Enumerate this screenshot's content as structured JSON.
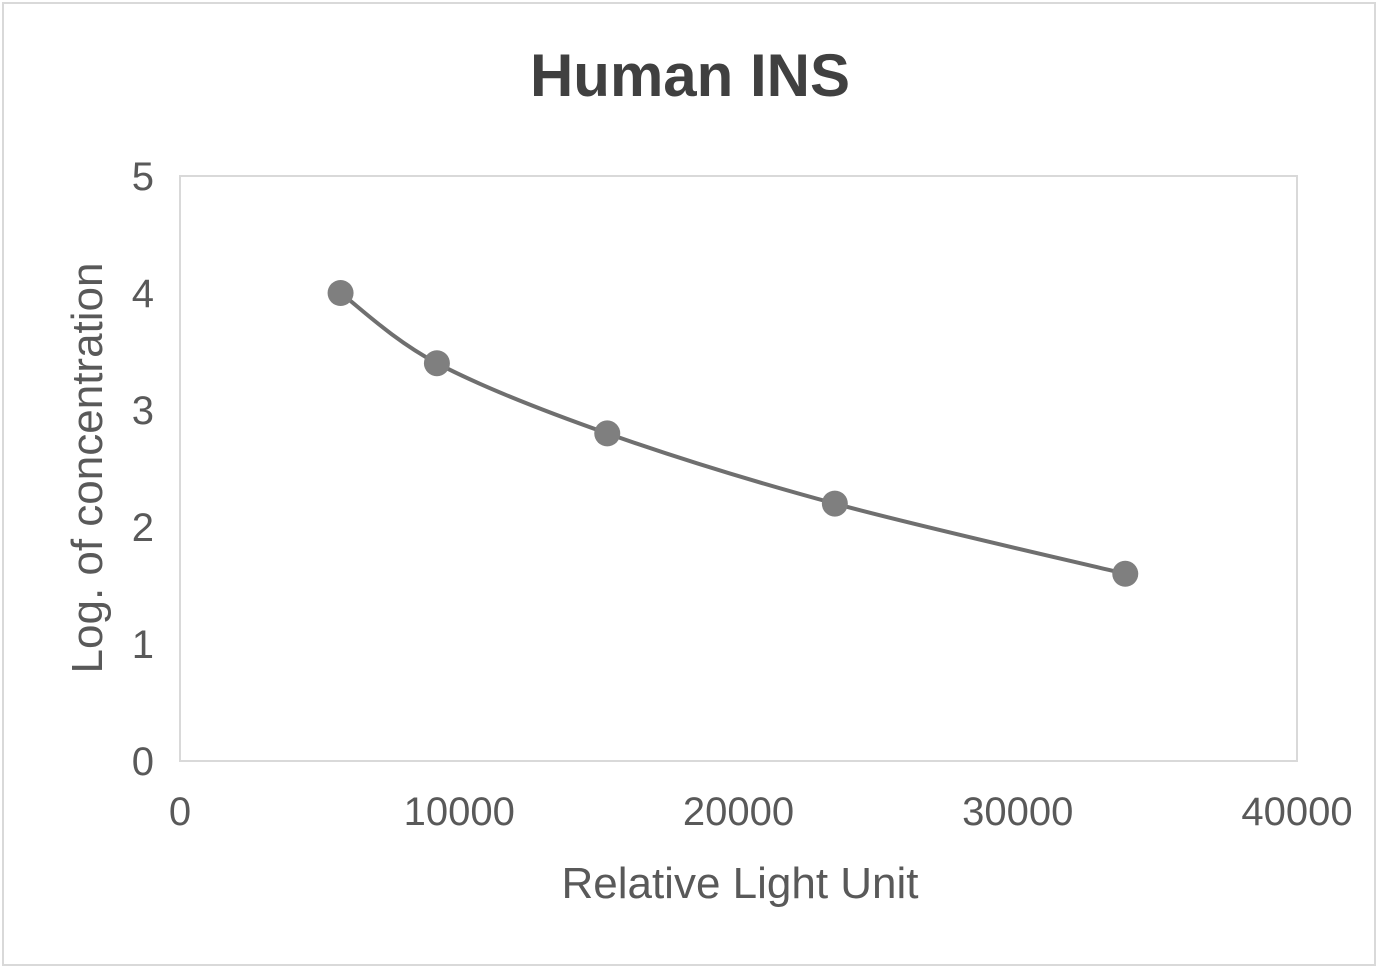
{
  "chart_data": {
    "type": "scatter",
    "title": "Human INS",
    "xlabel": "Relative Light Unit",
    "ylabel": "Log. of concentration",
    "xlim": [
      0,
      40000
    ],
    "ylim": [
      0,
      5
    ],
    "x_ticks": [
      0,
      10000,
      20000,
      30000,
      40000
    ],
    "y_ticks": [
      0,
      1,
      2,
      3,
      4,
      5
    ],
    "grid": false,
    "legend": "none",
    "smoothed_line": true,
    "series": [
      {
        "color": "#7f7f7f",
        "line_color": "#6f6f6f",
        "points": [
          {
            "x": 5750,
            "y": 4.0
          },
          {
            "x": 9200,
            "y": 3.4
          },
          {
            "x": 15300,
            "y": 2.8
          },
          {
            "x": 23450,
            "y": 2.2
          },
          {
            "x": 33850,
            "y": 1.6
          }
        ]
      }
    ]
  }
}
